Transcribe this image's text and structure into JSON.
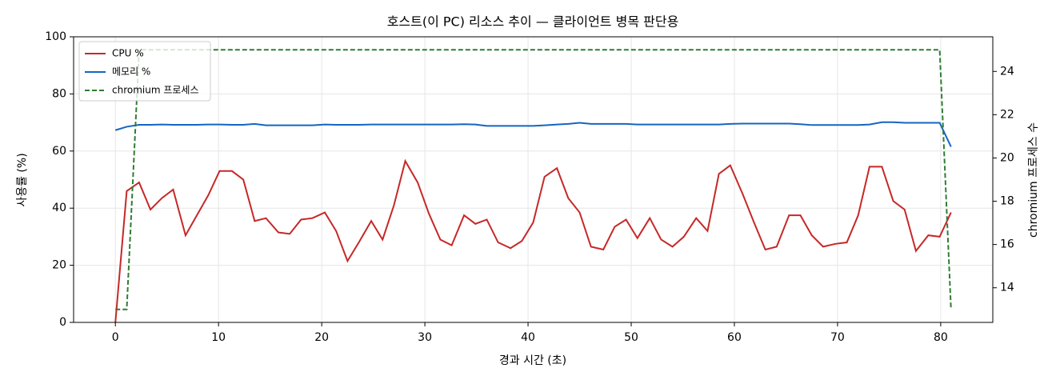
{
  "chart_data": {
    "type": "line",
    "title": "호스트(이 PC) 리소스 추이 — 클라이언트 병목 판단용",
    "x_label": "경과 시간 (초)",
    "y_label": "사용률 (%)",
    "y2_label": "chromium 프로세스 수",
    "x": [
      0,
      1.1,
      2.3,
      3.4,
      4.5,
      5.6,
      6.8,
      7.9,
      9.0,
      10.1,
      11.3,
      12.4,
      13.5,
      14.6,
      15.8,
      16.9,
      18.0,
      19.1,
      20.3,
      21.4,
      22.5,
      23.6,
      24.8,
      25.9,
      27.0,
      28.1,
      29.3,
      30.4,
      31.5,
      32.6,
      33.8,
      34.9,
      36.0,
      37.1,
      38.3,
      39.4,
      40.5,
      41.6,
      42.8,
      43.9,
      45.0,
      46.1,
      47.3,
      48.4,
      49.5,
      50.6,
      51.8,
      52.9,
      54.0,
      55.1,
      56.3,
      57.4,
      58.5,
      59.6,
      60.8,
      61.9,
      63.0,
      64.1,
      65.3,
      66.4,
      67.5,
      68.6,
      69.8,
      70.9,
      72.0,
      73.1,
      74.3,
      75.4,
      76.5,
      77.6,
      78.8,
      79.9,
      81.0
    ],
    "series": [
      {
        "name": "CPU %",
        "color": "#c62828",
        "values": [
          0,
          46,
          49,
          39.5,
          43.5,
          46.5,
          30.5,
          37.5,
          44.5,
          53,
          53,
          50,
          35.5,
          36.5,
          31.5,
          31,
          36,
          36.5,
          38.5,
          32,
          21.5,
          28,
          35.5,
          29,
          41,
          56.5,
          49,
          38,
          29,
          27,
          37.5,
          34.5,
          36,
          28,
          26,
          28.5,
          35,
          51,
          54,
          43.5,
          38.5,
          26.5,
          25.5,
          33.5,
          36,
          29.5,
          36.5,
          29,
          26.5,
          30,
          36.5,
          32,
          52,
          55,
          45,
          35,
          25.5,
          26.5,
          37.5,
          37.5,
          30.5,
          26.5,
          27.5,
          28,
          37.5,
          54.5,
          54.5,
          42.5,
          39.5,
          25,
          30.5,
          30,
          38.5
        ]
      },
      {
        "name": "메모리 %",
        "color": "#1565c0",
        "values": [
          67.3,
          68.5,
          69.2,
          69.2,
          69.3,
          69.2,
          69.2,
          69.2,
          69.3,
          69.3,
          69.2,
          69.2,
          69.5,
          69,
          69,
          69,
          69,
          69,
          69.3,
          69.2,
          69.2,
          69.2,
          69.3,
          69.3,
          69.3,
          69.3,
          69.3,
          69.3,
          69.3,
          69.3,
          69.4,
          69.3,
          68.8,
          68.8,
          68.8,
          68.8,
          68.8,
          69,
          69.3,
          69.5,
          69.9,
          69.5,
          69.5,
          69.5,
          69.5,
          69.3,
          69.3,
          69.3,
          69.3,
          69.3,
          69.3,
          69.3,
          69.3,
          69.5,
          69.6,
          69.6,
          69.6,
          69.6,
          69.6,
          69.4,
          69.1,
          69.1,
          69.1,
          69.1,
          69.1,
          69.3,
          70.1,
          70.1,
          69.9,
          69.9,
          69.9,
          69.9,
          61.5
        ]
      },
      {
        "name": "chromium 프로세스",
        "color": "#2e7d32",
        "axis": "y2",
        "dashed": true,
        "values": [
          13,
          13,
          25,
          25,
          25,
          25,
          25,
          25,
          25,
          25,
          25,
          25,
          25,
          25,
          25,
          25,
          25,
          25,
          25,
          25,
          25,
          25,
          25,
          25,
          25,
          25,
          25,
          25,
          25,
          25,
          25,
          25,
          25,
          25,
          25,
          25,
          25,
          25,
          25,
          25,
          25,
          25,
          25,
          25,
          25,
          25,
          25,
          25,
          25,
          25,
          25,
          25,
          25,
          25,
          25,
          25,
          25,
          25,
          25,
          25,
          25,
          25,
          25,
          25,
          25,
          25,
          25,
          25,
          25,
          25,
          25,
          25,
          13
        ]
      }
    ],
    "xlim": [
      -4.05,
      85.05
    ],
    "xticks": [
      0,
      10,
      20,
      30,
      40,
      50,
      60,
      70,
      80
    ],
    "ylim": [
      0,
      100
    ],
    "yticks": [
      0,
      20,
      40,
      60,
      80,
      100
    ],
    "y2lim": [
      12.4,
      25.6
    ],
    "y2ticks": [
      14,
      16,
      18,
      20,
      22,
      24
    ],
    "grid": true,
    "legend": "upper left"
  }
}
